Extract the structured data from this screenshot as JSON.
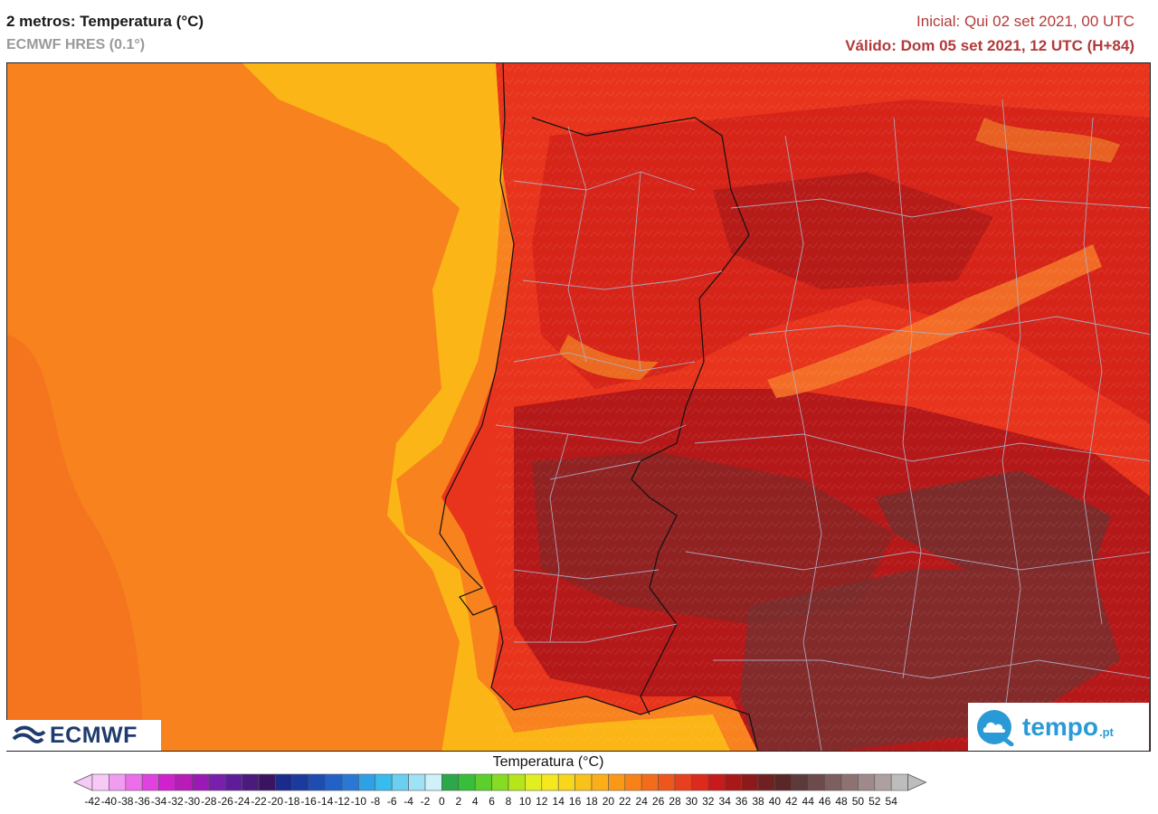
{
  "header": {
    "title": "2 metros: Temperatura (°C)",
    "model": "ECMWF HRES (0.1°)",
    "initial": "Inicial: Qui 02 set 2021, 00 UTC",
    "valid": "Válido: Dom 05 set 2021, 12 UTC (H+84)"
  },
  "map": {
    "region": "Portugal and western Iberian Peninsula",
    "ocean_color": "#f7821e",
    "coastal_sea_color": "#fbb516",
    "land_colors": [
      "#e8341c",
      "#c9171a",
      "#961515",
      "#6b3030"
    ]
  },
  "logos": {
    "left": "ECMWF",
    "right_main": "tempo",
    "right_suffix": ".pt"
  },
  "legend": {
    "title": "Temperatura (°C)",
    "labels": [
      "-42",
      "-40",
      "-38",
      "-36",
      "-34",
      "-32",
      "-30",
      "-28",
      "-26",
      "-24",
      "-22",
      "-20",
      "-18",
      "-16",
      "-14",
      "-12",
      "-10",
      "-8",
      "-6",
      "-4",
      "-2",
      "0",
      "2",
      "4",
      "6",
      "8",
      "10",
      "12",
      "14",
      "16",
      "18",
      "20",
      "22",
      "24",
      "26",
      "28",
      "30",
      "32",
      "34",
      "36",
      "38",
      "40",
      "42",
      "44",
      "46",
      "48",
      "50",
      "52",
      "54"
    ],
    "colors": [
      "#f7c9f7",
      "#f19cf1",
      "#ea6fe9",
      "#e042df",
      "#cf22cc",
      "#b81bb8",
      "#9a19b4",
      "#7a1eac",
      "#5e1c9a",
      "#4a1a7c",
      "#3a1460",
      "#1c2a8c",
      "#1a3a9e",
      "#1e4cb2",
      "#2262c6",
      "#2a78d6",
      "#30a0e6",
      "#38bcee",
      "#6bcff2",
      "#9fe2f6",
      "#cff2f8",
      "#2ca84a",
      "#38be3a",
      "#5ccf2c",
      "#86dc22",
      "#b4e61a",
      "#e2ee20",
      "#f6e81e",
      "#f8d61c",
      "#f9c21a",
      "#fbae18",
      "#fb9816",
      "#f88218",
      "#f36c1a",
      "#ee561c",
      "#e8401e",
      "#dc2a1c",
      "#c81a1a",
      "#a81818",
      "#8c1a1a",
      "#702020",
      "#5a2626",
      "#5c3a3a",
      "#6e4a4a",
      "#7e5e5e",
      "#8e7272",
      "#9e8a8a",
      "#aea0a0",
      "#bdbdbd"
    ]
  }
}
